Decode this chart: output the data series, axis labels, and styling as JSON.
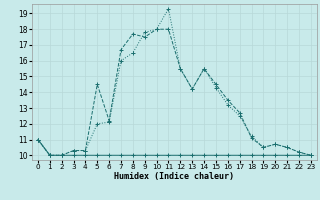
{
  "xlabel": "Humidex (Indice chaleur)",
  "background_color": "#c8eaea",
  "grid_color": "#b8d8d8",
  "line_color": "#1a6e6e",
  "x_ticks": [
    0,
    1,
    2,
    3,
    4,
    5,
    6,
    7,
    8,
    9,
    10,
    11,
    12,
    13,
    14,
    15,
    16,
    17,
    18,
    19,
    20,
    21,
    22,
    23
  ],
  "y_ticks": [
    10,
    11,
    12,
    13,
    14,
    15,
    16,
    17,
    18,
    19
  ],
  "ylim": [
    9.7,
    19.6
  ],
  "xlim": [
    -0.5,
    23.5
  ],
  "series1_y": [
    11,
    10,
    10,
    10,
    10,
    10,
    10,
    10,
    10,
    10,
    10,
    10,
    10,
    10,
    10,
    10,
    10,
    10,
    10,
    10,
    10,
    10,
    10,
    10
  ],
  "series2_y": [
    11,
    10,
    10,
    10.3,
    10.3,
    12,
    12.1,
    16.0,
    16.5,
    17.8,
    18.0,
    19.3,
    15.5,
    14.2,
    15.5,
    14.3,
    13.2,
    12.5,
    11.2,
    10.5,
    10.7,
    10.5,
    10.2,
    10
  ],
  "series3_y": [
    11,
    10,
    10,
    10.3,
    10.3,
    14.5,
    12.2,
    16.7,
    17.7,
    17.5,
    18.0,
    18.0,
    15.5,
    14.2,
    15.5,
    14.5,
    13.5,
    12.7,
    11.1,
    10.5,
    10.7,
    10.5,
    10.2,
    10
  ]
}
